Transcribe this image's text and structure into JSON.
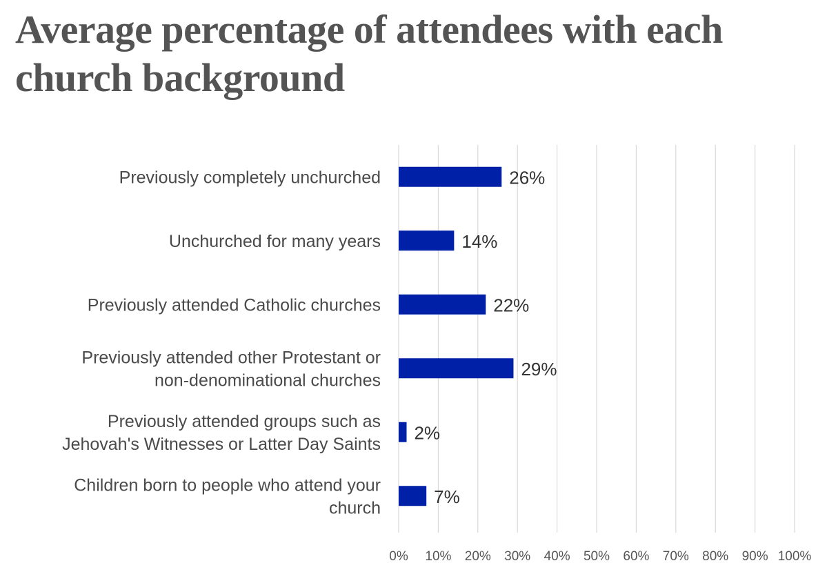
{
  "chart_data": {
    "type": "bar",
    "orientation": "horizontal",
    "title": "Average percentage of attendees with each church background",
    "categories": [
      [
        "Previously completely unchurched"
      ],
      [
        "Unchurched for many years"
      ],
      [
        "Previously attended Catholic churches"
      ],
      [
        "Previously attended other Protestant or",
        "non-denominational churches"
      ],
      [
        "Previously attended groups such as",
        "Jehovah's Witnesses or Latter Day Saints"
      ],
      [
        "Children born to people who attend your",
        "church"
      ]
    ],
    "values": [
      26,
      14,
      22,
      29,
      2,
      7
    ],
    "data_labels": [
      "26%",
      "14%",
      "22%",
      "29%",
      "2%",
      "7%"
    ],
    "xlim": [
      0,
      100
    ],
    "x_ticks": [
      0,
      10,
      20,
      30,
      40,
      50,
      60,
      70,
      80,
      90,
      100
    ],
    "x_tick_labels": [
      "0%",
      "10%",
      "20%",
      "30%",
      "40%",
      "50%",
      "60%",
      "70%",
      "80%",
      "90%",
      "100%"
    ],
    "grid": "vertical",
    "legend": "none",
    "colors": {
      "bar": "#0020a8",
      "grid": "#d9d9d9",
      "text": "#4a4a4a",
      "title": "#545454"
    }
  }
}
